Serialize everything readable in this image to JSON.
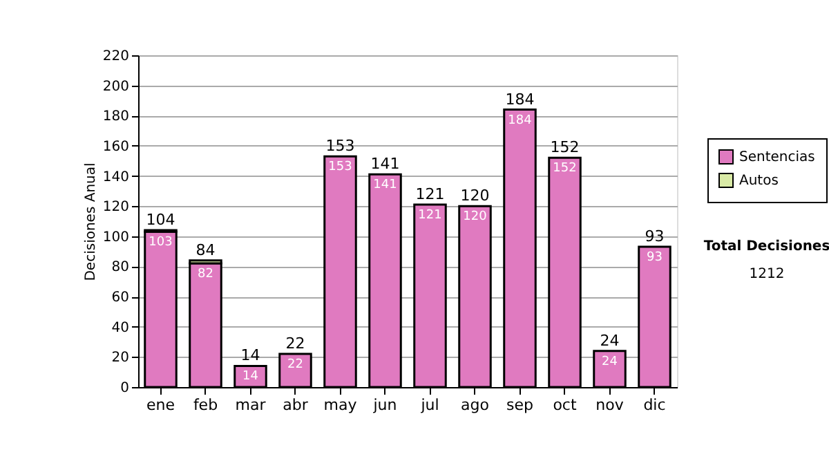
{
  "chart_data": {
    "type": "bar",
    "stacked": true,
    "ylabel": "Decisiones Anual",
    "categories": [
      "ene",
      "feb",
      "mar",
      "abr",
      "may",
      "jun",
      "jul",
      "ago",
      "sep",
      "oct",
      "nov",
      "dic"
    ],
    "series": [
      {
        "name": "Sentencias",
        "color": "#e07ac0",
        "values": [
          103,
          82,
          14,
          22,
          153,
          141,
          121,
          120,
          184,
          152,
          24,
          93
        ],
        "value_labels": [
          "103",
          "82",
          "14",
          "22",
          "153",
          "141",
          "121",
          "120",
          "184",
          "152",
          "24",
          "93"
        ]
      },
      {
        "name": "Autos",
        "color": "#d9eaa6",
        "values": [
          1,
          2,
          0,
          0,
          0,
          0,
          0,
          0,
          0,
          0,
          0,
          0
        ]
      }
    ],
    "totals": [
      "104",
      "84",
      "14",
      "22",
      "153",
      "141",
      "121",
      "120",
      "184",
      "152",
      "24",
      "93"
    ],
    "ylim": [
      0,
      220
    ],
    "yticks": [
      0,
      20,
      40,
      60,
      80,
      100,
      120,
      140,
      160,
      180,
      200,
      220
    ],
    "grid": "y",
    "legend": "right",
    "annotations": [
      "Total Decisiones",
      "1212"
    ]
  }
}
